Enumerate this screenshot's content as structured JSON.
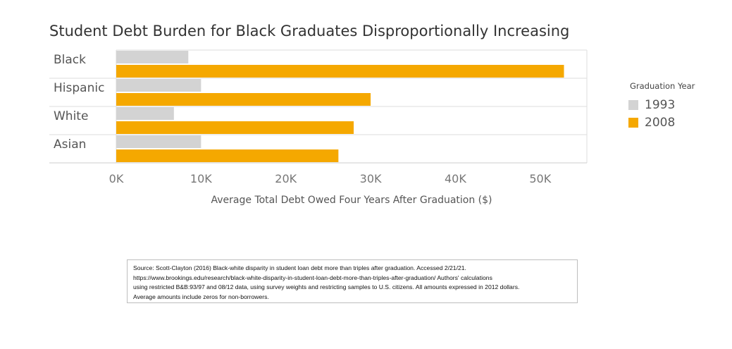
{
  "chart_data": {
    "type": "bar",
    "orientation": "horizontal",
    "title": "Student Debt Burden for Black Graduates Disproportionally Increasing",
    "categories": [
      "Black",
      "Hispanic",
      "White",
      "Asian"
    ],
    "series": [
      {
        "name": "1993",
        "color": "#d3d3d3",
        "values": [
          8500,
          10000,
          6800,
          10000
        ]
      },
      {
        "name": "2008",
        "color": "#f5a800",
        "values": [
          52800,
          30000,
          28000,
          26200
        ]
      }
    ],
    "xlabel": "Average Total Debt Owed Four Years After Graduation ($)",
    "ylabel": "",
    "xlim": [
      0,
      55500
    ],
    "xticks": [
      0,
      10000,
      20000,
      30000,
      40000,
      50000
    ],
    "xtick_labels": [
      "0K",
      "10K",
      "20K",
      "30K",
      "40K",
      "50K"
    ],
    "grid": "horizontal separators between categories",
    "legend": {
      "title": "Graduation Year",
      "placement": "right"
    }
  },
  "source": {
    "lines": [
      "Source: Scott-Clayton (2016) Black-white disparity in student loan debt more than triples after graduation. Accessed 2/21/21.",
      "https://www.brookings.edu/research/black-white-disparity-in-student-loan-debt-more-than-triples-after-graduation/     Authors' calculations",
      "using restricted B&B:93/97 and 08/12 data, using survey weights and restricting samples to U.S. citizens. All amounts expressed in 2012 dollars.",
      "Average amounts include zeros for non-borrowers."
    ]
  }
}
